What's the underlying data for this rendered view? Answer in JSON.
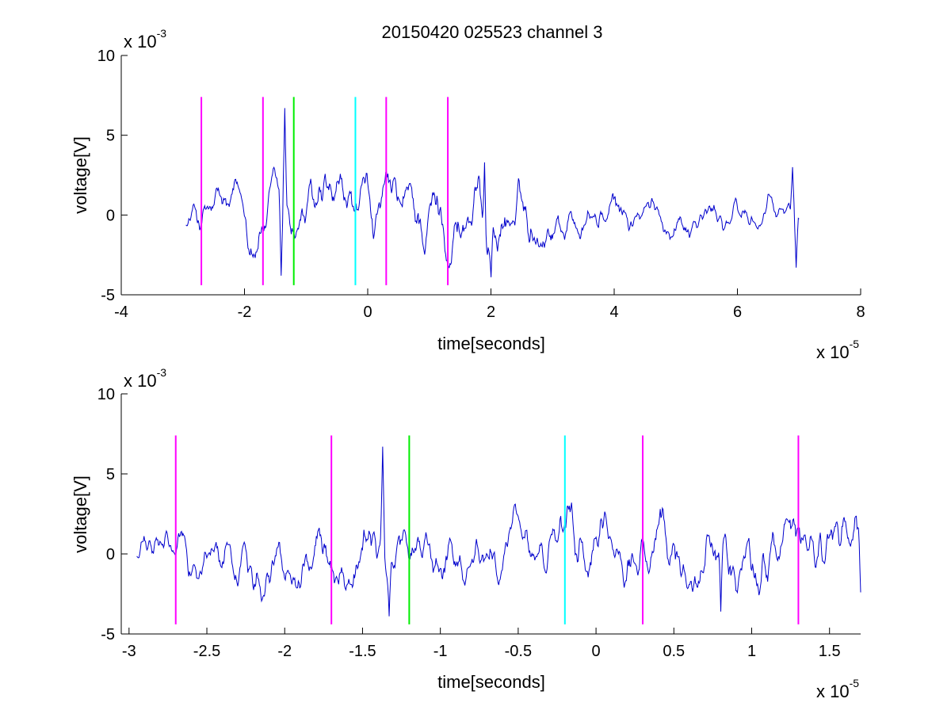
{
  "figure": {
    "title": "20150420 025523 channel 3"
  },
  "chart_data": [
    {
      "type": "line",
      "xlabel": "time[seconds]",
      "ylabel": "voltage[V]",
      "xlim": [
        -4e-05,
        8e-05
      ],
      "ylim": [
        -0.005,
        0.01
      ],
      "xticks": [
        -4e-05,
        -2e-05,
        0,
        2e-05,
        4e-05,
        6e-05,
        8e-05
      ],
      "xtick_labels": [
        "-4",
        "-2",
        "0",
        "2",
        "4",
        "6",
        "8"
      ],
      "yticks": [
        -0.005,
        0,
        0.005,
        0.01
      ],
      "ytick_labels": [
        "-5",
        "0",
        "5",
        "10"
      ],
      "x_multiplier": {
        "base": "x 10",
        "exponent": "-5"
      },
      "y_multiplier": {
        "base": "x 10",
        "exponent": "-3"
      },
      "grid": false,
      "signal": {
        "color": "#0000cc",
        "x_start": -2.95e-05,
        "x_end": 7e-05,
        "amplitude_profile": [
          [
            -2.95e-05,
            0.0012
          ],
          [
            -2e-05,
            0.0017
          ],
          [
            -1.4e-05,
            0.0017
          ],
          [
            0,
            0.0018
          ],
          [
            2e-05,
            0.0021
          ],
          [
            3e-05,
            0.0012
          ],
          [
            5e-05,
            0.0009
          ],
          [
            7e-05,
            0.0009
          ]
        ],
        "features": [
          {
            "x": -1.35e-05,
            "y": 0.0067
          },
          {
            "x": -1.4e-05,
            "y": -0.0038
          },
          {
            "x": 1.9e-05,
            "y": 0.0033
          },
          {
            "x": 2e-05,
            "y": -0.0039
          },
          {
            "x": 6.9e-05,
            "y": 0.003
          },
          {
            "x": 6.95e-05,
            "y": -0.0033
          }
        ]
      },
      "markers": [
        {
          "x": -2.7e-05,
          "color": "#ff00ff",
          "ymin": -0.0044,
          "ymax": 0.0074
        },
        {
          "x": -1.7e-05,
          "color": "#ff00ff",
          "ymin": -0.0044,
          "ymax": 0.0074
        },
        {
          "x": -1.2e-05,
          "color": "#00ee00",
          "ymin": -0.0044,
          "ymax": 0.0074
        },
        {
          "x": -2e-06,
          "color": "#00ffff",
          "ymin": -0.0044,
          "ymax": 0.0074
        },
        {
          "x": 3e-06,
          "color": "#ff00ff",
          "ymin": -0.0044,
          "ymax": 0.0074
        },
        {
          "x": 1.3e-05,
          "color": "#ff00ff",
          "ymin": -0.0044,
          "ymax": 0.0074
        }
      ]
    },
    {
      "type": "line",
      "xlabel": "time[seconds]",
      "ylabel": "voltage[V]",
      "xlim": [
        -3.05e-05,
        1.7e-05
      ],
      "ylim": [
        -0.005,
        0.01
      ],
      "xticks": [
        -3e-05,
        -2.5e-05,
        -2e-05,
        -1.5e-05,
        -1e-05,
        -5e-06,
        0,
        5e-06,
        1e-05,
        1.5e-05
      ],
      "xtick_labels": [
        "-3",
        "-2.5",
        "-2",
        "-1.5",
        "-1",
        "-0.5",
        "0",
        "0.5",
        "1",
        "1.5"
      ],
      "yticks": [
        -0.005,
        0,
        0.005,
        0.01
      ],
      "ytick_labels": [
        "-5",
        "0",
        "5",
        "10"
      ],
      "x_multiplier": {
        "base": "x 10",
        "exponent": "-5"
      },
      "y_multiplier": {
        "base": "x 10",
        "exponent": "-3"
      },
      "grid": false,
      "signal": {
        "color": "#0000cc",
        "x_start": -2.95e-05,
        "x_end": 1.7e-05,
        "amplitude_profile": [
          [
            -2.95e-05,
            0.0011
          ],
          [
            -2e-05,
            0.0015
          ],
          [
            -1.4e-05,
            0.0015
          ],
          [
            0,
            0.0016
          ],
          [
            1.7e-05,
            0.0018
          ]
        ],
        "features": [
          {
            "x": -1.37e-05,
            "y": 0.0067
          },
          {
            "x": -1.33e-05,
            "y": -0.0039
          },
          {
            "x": 8e-06,
            "y": -0.0036
          },
          {
            "x": 1.7e-05,
            "y": -0.0024
          }
        ]
      },
      "markers": [
        {
          "x": -2.7e-05,
          "color": "#ff00ff",
          "ymin": -0.0044,
          "ymax": 0.0074
        },
        {
          "x": -1.7e-05,
          "color": "#ff00ff",
          "ymin": -0.0044,
          "ymax": 0.0074
        },
        {
          "x": -1.2e-05,
          "color": "#00ee00",
          "ymin": -0.0044,
          "ymax": 0.0074
        },
        {
          "x": -2e-06,
          "color": "#00ffff",
          "ymin": -0.0044,
          "ymax": 0.0074
        },
        {
          "x": 3e-06,
          "color": "#ff00ff",
          "ymin": -0.0044,
          "ymax": 0.0074
        },
        {
          "x": 1.3e-05,
          "color": "#ff00ff",
          "ymin": -0.0044,
          "ymax": 0.0074
        }
      ]
    }
  ]
}
